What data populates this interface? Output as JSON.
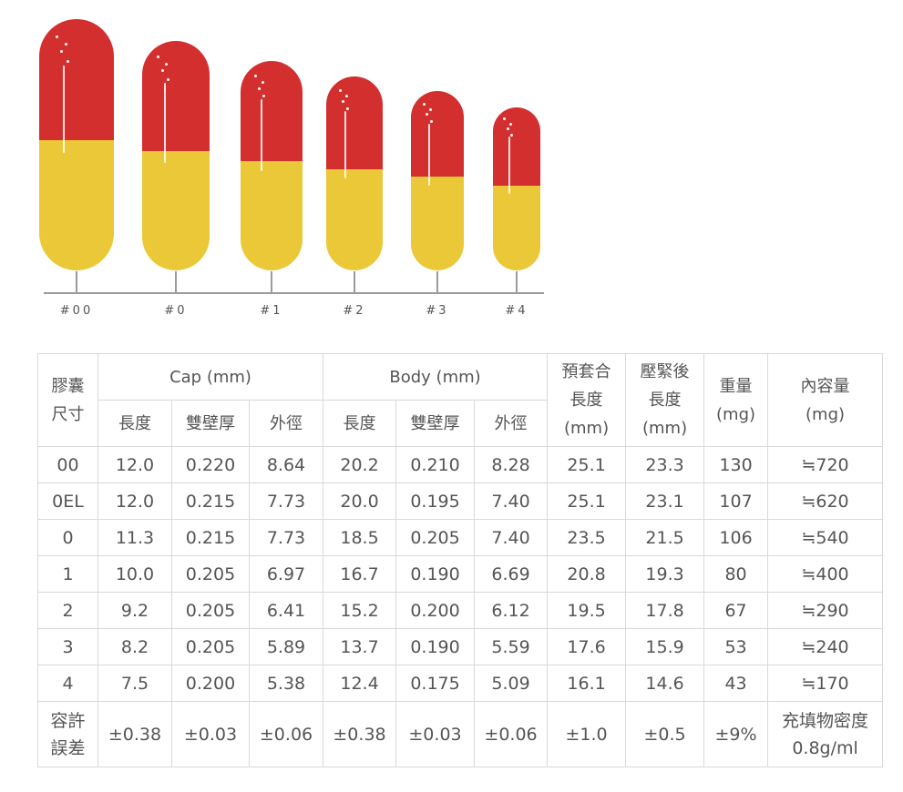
{
  "figure": {
    "colors": {
      "cap": "#d42f2f",
      "body": "#ebc838",
      "axis": "#9b9b9b"
    },
    "sizes": [
      "#00",
      "#0",
      "#1",
      "#2",
      "#3",
      "#4"
    ]
  },
  "table": {
    "header": {
      "size_label": [
        "膠囊",
        "尺寸"
      ],
      "cap_group": "Cap (mm)",
      "body_group": "Body (mm)",
      "prefit_length": [
        "預套合",
        "長度",
        "(mm)"
      ],
      "closed_length": [
        "壓緊後",
        "長度",
        "(mm)"
      ],
      "weight": [
        "重量",
        "(mg)"
      ],
      "capacity": [
        "內容量",
        "(mg)"
      ],
      "cap_cols": [
        "長度",
        "雙壁厚",
        "外徑"
      ],
      "body_cols": [
        "長度",
        "雙壁厚",
        "外徑"
      ]
    },
    "rows": [
      [
        "00",
        "12.0",
        "0.220",
        "8.64",
        "20.2",
        "0.210",
        "8.28",
        "25.1",
        "23.3",
        "130",
        "≒720"
      ],
      [
        "0EL",
        "12.0",
        "0.215",
        "7.73",
        "20.0",
        "0.195",
        "7.40",
        "25.1",
        "23.1",
        "107",
        "≒620"
      ],
      [
        "0",
        "11.3",
        "0.215",
        "7.73",
        "18.5",
        "0.205",
        "7.40",
        "23.5",
        "21.5",
        "106",
        "≒540"
      ],
      [
        "1",
        "10.0",
        "0.205",
        "6.97",
        "16.7",
        "0.190",
        "6.69",
        "20.8",
        "19.3",
        "80",
        "≒400"
      ],
      [
        "2",
        "9.2",
        "0.205",
        "6.41",
        "15.2",
        "0.200",
        "6.12",
        "19.5",
        "17.8",
        "67",
        "≒290"
      ],
      [
        "3",
        "8.2",
        "0.205",
        "5.89",
        "13.7",
        "0.190",
        "5.59",
        "17.6",
        "15.9",
        "53",
        "≒240"
      ],
      [
        "4",
        "7.5",
        "0.200",
        "5.38",
        "12.4",
        "0.175",
        "5.09",
        "16.1",
        "14.6",
        "43",
        "≒170"
      ]
    ],
    "tolerance": {
      "label": [
        "容許",
        "誤差"
      ],
      "values": [
        "±0.38",
        "±0.03",
        "±0.06",
        "±0.38",
        "±0.03",
        "±0.06",
        "±1.0",
        "±0.5",
        "±9%"
      ],
      "capacity_note": [
        "充填物密度",
        "0.8g/ml"
      ]
    }
  }
}
